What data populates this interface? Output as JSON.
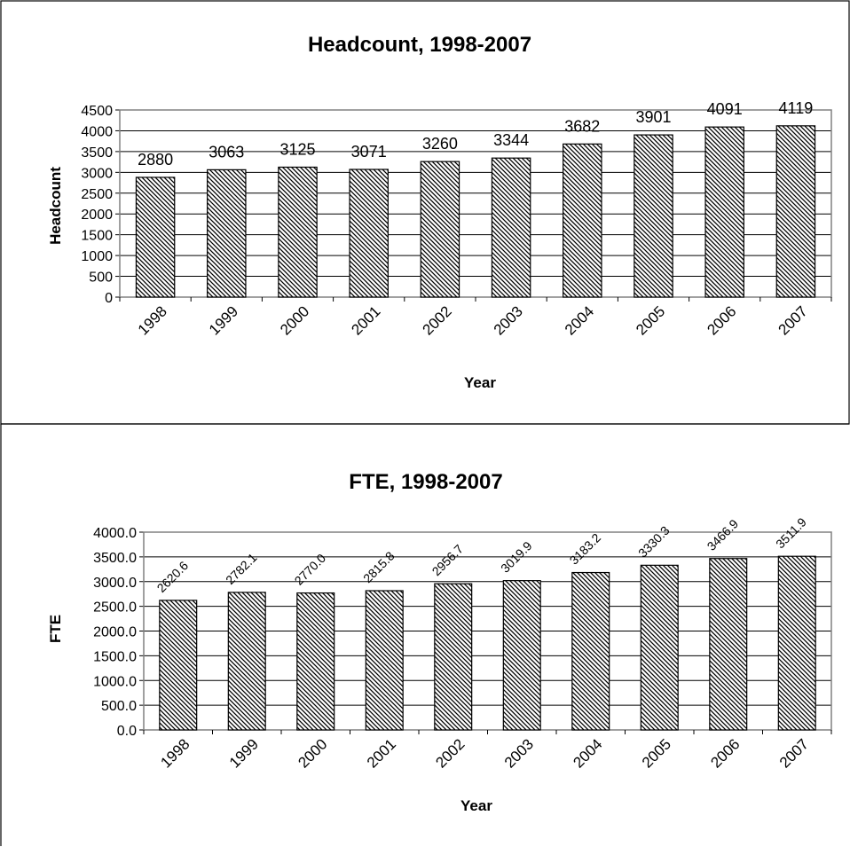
{
  "chart_data": [
    {
      "type": "bar",
      "title": "Headcount, 1998-2007",
      "xlabel": "Year",
      "ylabel": "Headcount",
      "categories": [
        "1998",
        "1999",
        "2000",
        "2001",
        "2002",
        "2003",
        "2004",
        "2005",
        "2006",
        "2007"
      ],
      "values": [
        2880,
        3063,
        3125,
        3071,
        3260,
        3344,
        3682,
        3901,
        4091,
        4119
      ],
      "data_labels": [
        "2880",
        "3063",
        "3125",
        "3071",
        "3260",
        "3344",
        "3682",
        "3901",
        "4091",
        "4119"
      ],
      "ylim": [
        0,
        4500
      ],
      "yticks": [
        "0",
        "500",
        "1000",
        "1500",
        "2000",
        "2500",
        "3000",
        "3500",
        "4000",
        "4500"
      ],
      "grid": true,
      "legend": "none",
      "bar_fill": "diagonal-hatch"
    },
    {
      "type": "bar",
      "title": "FTE, 1998-2007",
      "xlabel": "Year",
      "ylabel": "FTE",
      "categories": [
        "1998",
        "1999",
        "2000",
        "2001",
        "2002",
        "2003",
        "2004",
        "2005",
        "2006",
        "2007"
      ],
      "values": [
        2620.6,
        2782.1,
        2770.0,
        2815.8,
        2956.7,
        3019.9,
        3183.2,
        3330.3,
        3466.9,
        3511.9
      ],
      "data_labels": [
        "2620.6",
        "2782.1",
        "2770.0",
        "2815.8",
        "2956.7",
        "3019.9",
        "3183.2",
        "3330.3",
        "3466.9",
        "3511.9"
      ],
      "ylim": [
        0,
        4000
      ],
      "yticks": [
        "0.0",
        "500.0",
        "1000.0",
        "1500.0",
        "2000.0",
        "2500.0",
        "3000.0",
        "3500.0",
        "4000.0"
      ],
      "grid": true,
      "legend": "none",
      "bar_fill": "diagonal-hatch"
    }
  ]
}
